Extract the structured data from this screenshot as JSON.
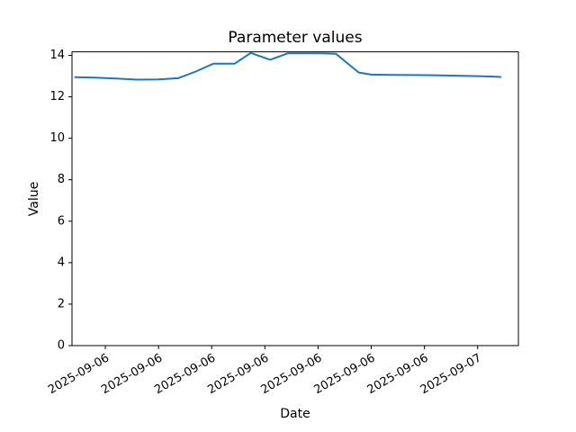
{
  "figure": {
    "kind": "matplotlib-line-plot"
  },
  "chart_data": {
    "type": "line",
    "title": "Parameter values",
    "xlabel": "Date",
    "ylabel": "Value",
    "grid": false,
    "legend": "none",
    "line_color": "#1f77b4",
    "axis_color": "#000000",
    "x_unit": "hours since 2025-09-06 00:00",
    "series": [
      {
        "name": "parameter-values",
        "x_hours": [
          1.3,
          2.4,
          3.6,
          4.8,
          6.0,
          7.1,
          8.1,
          9.1,
          10.3,
          11.2,
          12.3,
          13.3,
          14.3,
          15.2,
          16.0,
          17.3,
          18.0,
          19.2,
          20.4,
          21.6,
          22.8,
          24.0,
          24.7,
          25.3
        ],
        "values": [
          12.95,
          12.93,
          12.88,
          12.83,
          12.84,
          12.9,
          13.22,
          13.6,
          13.6,
          14.12,
          13.79,
          14.1,
          14.1,
          14.1,
          14.08,
          13.17,
          13.07,
          13.06,
          13.05,
          13.04,
          13.02,
          13.0,
          12.98,
          12.96
        ]
      }
    ],
    "x_tick_hours": [
      3,
      6,
      9,
      12,
      15,
      18,
      21,
      24
    ],
    "x_tick_labels": [
      "2025-09-06",
      "2025-09-06",
      "2025-09-06",
      "2025-09-06",
      "2025-09-06",
      "2025-09-06",
      "2025-09-06",
      "2025-09-07"
    ],
    "x_tick_rotation_deg": 30,
    "y_ticks": [
      0,
      2,
      4,
      6,
      8,
      10,
      12,
      14
    ],
    "xlim_hours": [
      1.12,
      26.3
    ],
    "ylim": [
      0,
      14.17
    ]
  }
}
